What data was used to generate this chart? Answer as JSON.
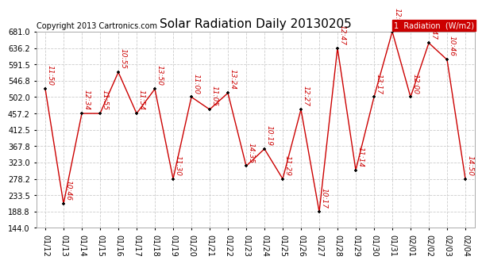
{
  "title": "Solar Radiation Daily 20130205",
  "copyright": "Copyright 2013 Cartronics.com",
  "legend_label": "Radiation  (W/m2)",
  "legend_num": "1",
  "ylim": [
    144.0,
    681.0
  ],
  "yticks": [
    144.0,
    188.8,
    233.5,
    278.2,
    323.0,
    367.8,
    412.5,
    457.2,
    502.0,
    546.8,
    591.5,
    636.2,
    681.0
  ],
  "dates": [
    "01/12",
    "01/13",
    "01/14",
    "01/15",
    "01/16",
    "01/17",
    "01/18",
    "01/19",
    "01/20",
    "01/21",
    "01/22",
    "01/23",
    "01/24",
    "01/25",
    "01/26",
    "01/27",
    "01/28",
    "01/29",
    "01/30",
    "01/31",
    "02/01",
    "02/02",
    "02/03",
    "02/04"
  ],
  "values": [
    524,
    210,
    457,
    457,
    570,
    457,
    524,
    278,
    502,
    468,
    513,
    313,
    360,
    278,
    468,
    188,
    636,
    302,
    502,
    681,
    502,
    650,
    604,
    278
  ],
  "time_labels": [
    "11:50",
    "10:46",
    "12:34",
    "11:55",
    "10:55",
    "11:54",
    "13:50",
    "11:30",
    "11:00",
    "11:05",
    "13:24",
    "14:35",
    "10:19",
    "11:29",
    "12:27",
    "10:17",
    "12:47",
    "11:14",
    "13:17",
    "12:47",
    "12:00",
    "11:47",
    "10:46",
    "14:50"
  ],
  "line_color": "#cc0000",
  "point_color": "#000000",
  "label_color": "#cc0000",
  "bg_color": "#ffffff",
  "grid_color": "#cccccc",
  "title_fontsize": 11,
  "label_fontsize": 6.5,
  "copyright_fontsize": 7,
  "tick_fontsize": 7
}
